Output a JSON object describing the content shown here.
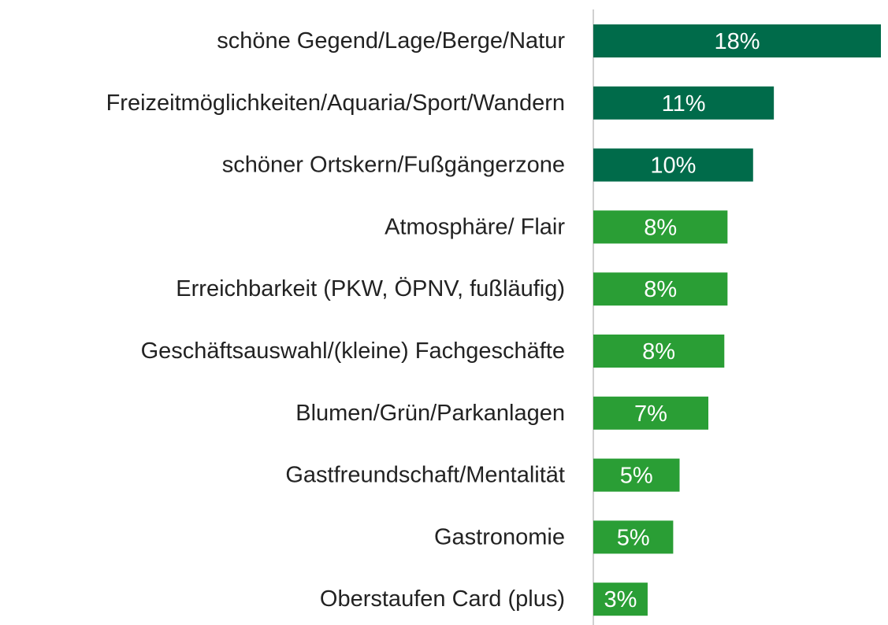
{
  "chart_data": {
    "type": "barh",
    "categories": [
      "schöne Gegend/Lage/Berge/Natur",
      "Freizeitmöglichkeiten/Aquaria/Sport/Wandern",
      "schöner Ortskern/Fußgängerzone",
      "Atmosphäre/ Flair",
      "Erreichbarkeit (PKW, ÖPNV, fußläufig)",
      "Geschäftsauswahl/(kleine) Fachgeschäfte",
      "Blumen/Grün/Parkanlagen",
      "Gastfreundschaft/Mentalität",
      "Gastronomie",
      "Oberstaufen Card (plus)"
    ],
    "values": [
      18,
      11.3,
      10.0,
      8.4,
      8.4,
      8.2,
      7.2,
      5.4,
      5.0,
      3.4
    ],
    "value_labels": [
      "18%",
      "11%",
      "10%",
      "8%",
      "8%",
      "8%",
      "7%",
      "5%",
      "5%",
      "3%"
    ],
    "colors": [
      "#006b4a",
      "#006b4a",
      "#006b4a",
      "#2a9e35",
      "#2a9e35",
      "#2a9e35",
      "#2a9e35",
      "#2a9e35",
      "#2a9e35",
      "#2a9e35"
    ],
    "xlim": [
      0,
      18
    ]
  }
}
